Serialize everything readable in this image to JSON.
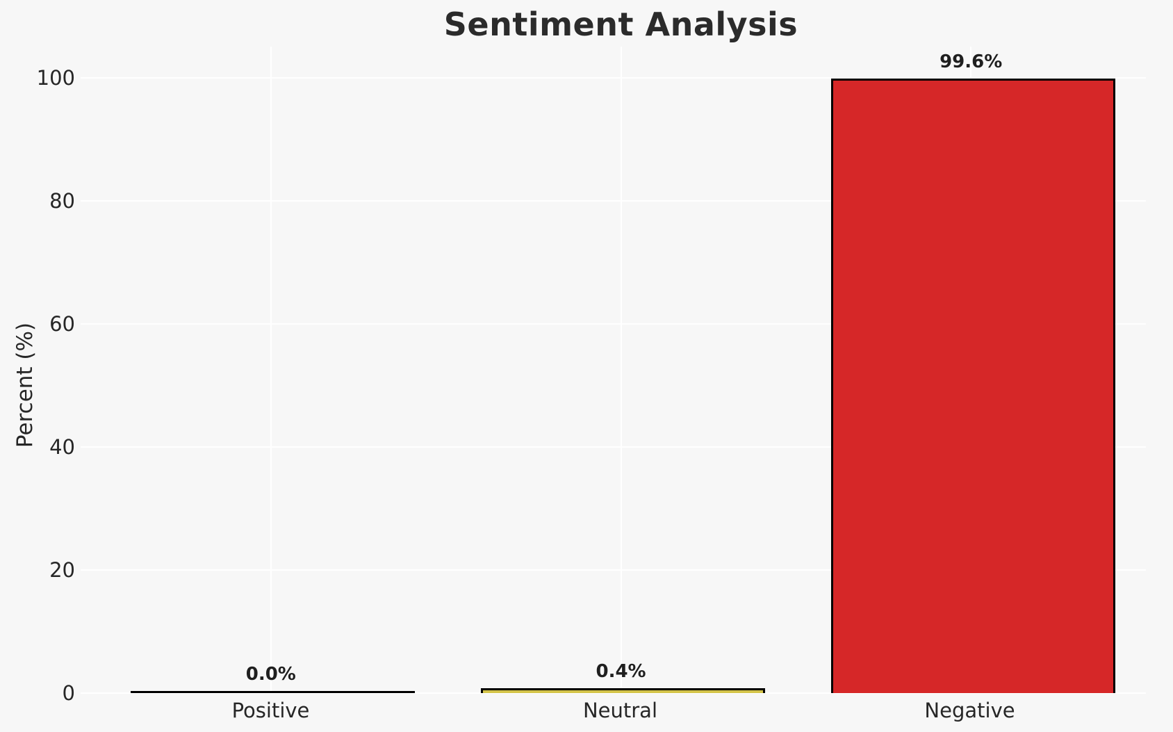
{
  "chart_data": {
    "type": "bar",
    "title": "Sentiment Analysis",
    "categories": [
      "Positive",
      "Neutral",
      "Negative"
    ],
    "values": [
      0.0,
      0.4,
      99.6
    ],
    "value_labels": [
      "0.0%",
      "0.4%",
      "99.6%"
    ],
    "xlabel": "",
    "ylabel": "Percent (%)",
    "yticks": [
      "0",
      "20",
      "40",
      "60",
      "80",
      "100"
    ],
    "ylim": [
      0,
      105
    ],
    "grid": "white horizontal and vertical gridlines on light gray background",
    "legend_position": "none",
    "bar_colors": [
      null,
      "#d4c44a",
      "#d62728"
    ],
    "bar_edge_color": "#000000",
    "background_color": "#f7f7f7",
    "text_color": "#262626"
  }
}
